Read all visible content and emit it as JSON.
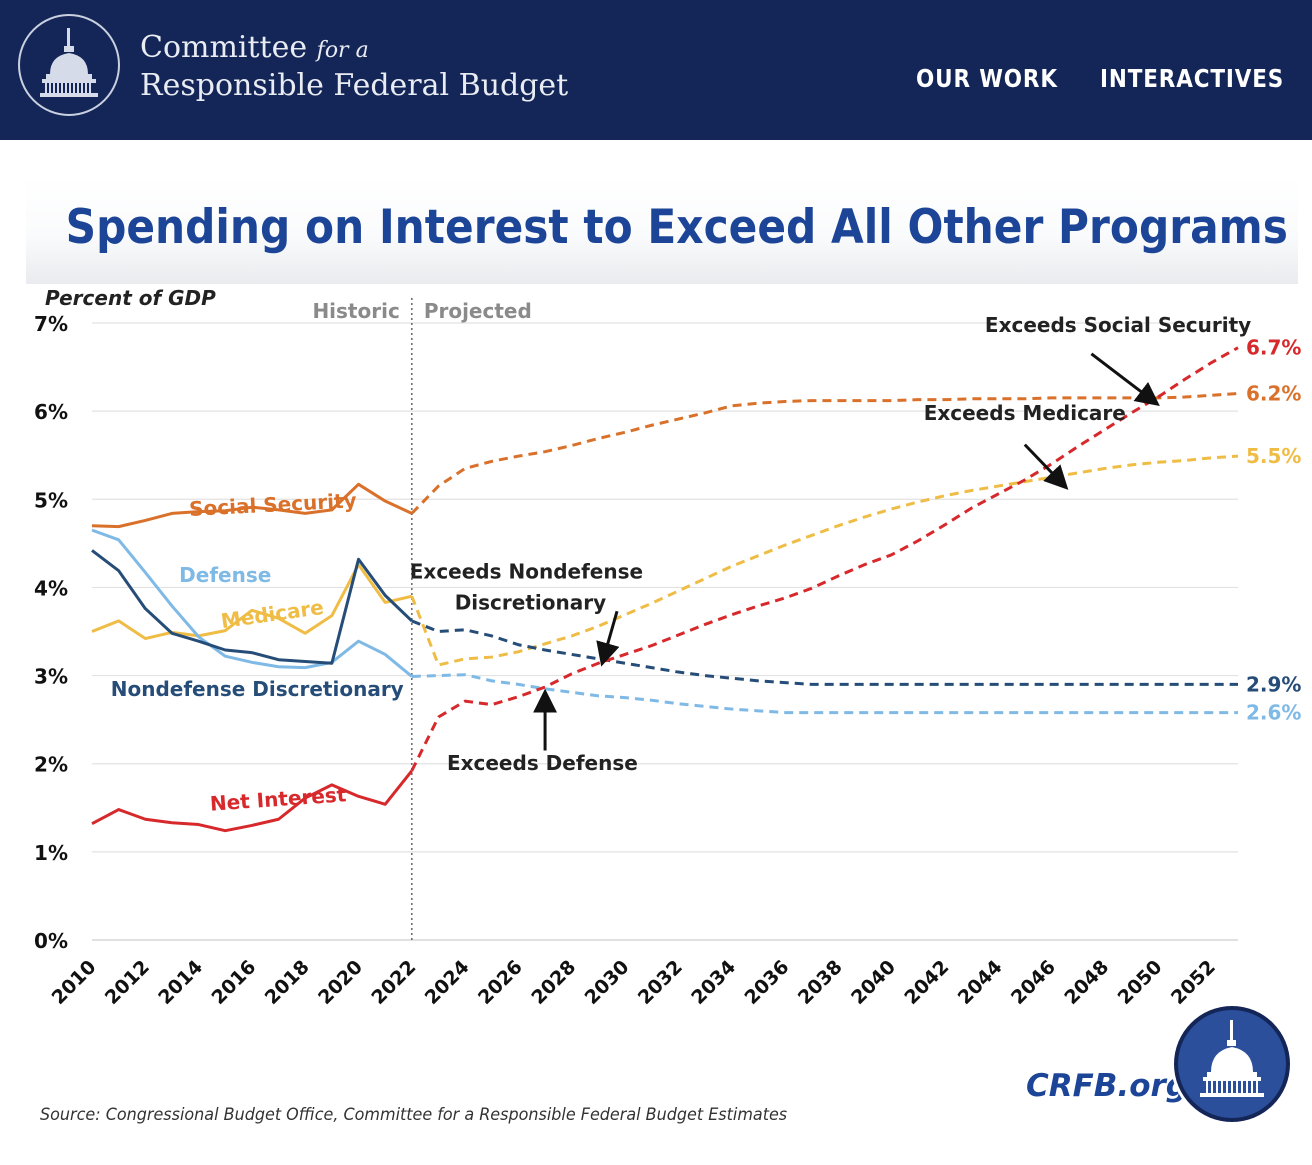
{
  "header": {
    "org_name_line1": "Committee",
    "org_name_for_a": "for a",
    "org_name_line2": "Responsible Federal Budget",
    "nav": [
      {
        "label": "OUR WORK"
      },
      {
        "label": "INTERACTIVES"
      }
    ],
    "logo_icon": "capitol-dome-icon"
  },
  "footer": {
    "source": "Source: Congressional Budget Office, Committee for a Responsible Federal Budget Estimates",
    "url": "CRFB.org",
    "seal_icon": "capitol-dome-seal-icon"
  },
  "colors": {
    "header_bg": "#142657",
    "title": "#1d4597",
    "social_security": "#d9712b",
    "medicare": "#efbd45",
    "defense": "#7fb9e6",
    "nondefense_discretionary": "#264d78",
    "net_interest": "#d7282b"
  },
  "chart_data": {
    "type": "line",
    "title": "Spending on Interest to Exceed All Other Programs",
    "ylabel": "Percent of GDP",
    "xlim": [
      2010,
      2053
    ],
    "ylim": [
      0,
      7
    ],
    "yticks": [
      "0%",
      "1%",
      "2%",
      "3%",
      "4%",
      "5%",
      "6%",
      "7%"
    ],
    "xticks": [
      "2010",
      "2012",
      "2014",
      "2016",
      "2018",
      "2020",
      "2022",
      "2024",
      "2026",
      "2028",
      "2030",
      "2032",
      "2034",
      "2036",
      "2038",
      "2040",
      "2042",
      "2044",
      "2046",
      "2048",
      "2050",
      "2052"
    ],
    "grid": "horizontal",
    "divider": {
      "x": 2022,
      "left_label": "Historic",
      "right_label": "Projected"
    },
    "x": [
      2010,
      2011,
      2012,
      2013,
      2014,
      2015,
      2016,
      2017,
      2018,
      2019,
      2020,
      2021,
      2022,
      2023,
      2024,
      2025,
      2026,
      2027,
      2028,
      2029,
      2030,
      2031,
      2032,
      2033,
      2034,
      2035,
      2036,
      2037,
      2038,
      2039,
      2040,
      2041,
      2042,
      2043,
      2044,
      2045,
      2046,
      2047,
      2048,
      2049,
      2050,
      2051,
      2052,
      2053
    ],
    "historic_end_index": 12,
    "series": [
      {
        "name": "Social Security",
        "key": "social_security",
        "end_label": "6.2%",
        "values": [
          4.7,
          4.69,
          4.76,
          4.84,
          4.86,
          4.87,
          4.91,
          4.88,
          4.84,
          4.88,
          5.17,
          4.98,
          4.84,
          5.15,
          5.35,
          5.43,
          5.49,
          5.54,
          5.61,
          5.69,
          5.76,
          5.84,
          5.91,
          5.98,
          6.06,
          6.09,
          6.11,
          6.12,
          6.12,
          6.12,
          6.12,
          6.13,
          6.13,
          6.14,
          6.14,
          6.14,
          6.15,
          6.15,
          6.15,
          6.15,
          6.15,
          6.16,
          6.18,
          6.2
        ]
      },
      {
        "name": "Medicare",
        "key": "medicare",
        "end_label": "5.5%",
        "values": [
          3.5,
          3.62,
          3.42,
          3.49,
          3.45,
          3.51,
          3.74,
          3.65,
          3.48,
          3.68,
          4.26,
          3.83,
          3.9,
          3.12,
          3.19,
          3.21,
          3.27,
          3.36,
          3.45,
          3.56,
          3.69,
          3.82,
          3.96,
          4.1,
          4.24,
          4.36,
          4.48,
          4.59,
          4.7,
          4.8,
          4.89,
          4.97,
          5.04,
          5.1,
          5.15,
          5.2,
          5.25,
          5.3,
          5.35,
          5.39,
          5.42,
          5.44,
          5.47,
          5.49
        ]
      },
      {
        "name": "Defense",
        "key": "defense",
        "end_label": "2.6%",
        "values": [
          4.65,
          4.54,
          4.17,
          3.79,
          3.44,
          3.22,
          3.15,
          3.1,
          3.09,
          3.15,
          3.39,
          3.24,
          2.99,
          3.0,
          3.01,
          2.94,
          2.9,
          2.85,
          2.81,
          2.77,
          2.75,
          2.72,
          2.68,
          2.65,
          2.62,
          2.6,
          2.58,
          2.58,
          2.58,
          2.58,
          2.58,
          2.58,
          2.58,
          2.58,
          2.58,
          2.58,
          2.58,
          2.58,
          2.58,
          2.58,
          2.58,
          2.58,
          2.58,
          2.58
        ]
      },
      {
        "name": "Nondefense Discretionary",
        "key": "nondefense_discretionary",
        "end_label": "2.9%",
        "values": [
          4.42,
          4.19,
          3.76,
          3.48,
          3.39,
          3.29,
          3.26,
          3.18,
          3.16,
          3.14,
          4.32,
          3.91,
          3.62,
          3.5,
          3.52,
          3.45,
          3.35,
          3.29,
          3.24,
          3.19,
          3.14,
          3.09,
          3.04,
          3.0,
          2.97,
          2.94,
          2.92,
          2.9,
          2.9,
          2.9,
          2.9,
          2.9,
          2.9,
          2.9,
          2.9,
          2.9,
          2.9,
          2.9,
          2.9,
          2.9,
          2.9,
          2.9,
          2.9,
          2.9
        ]
      },
      {
        "name": "Net Interest",
        "key": "net_interest",
        "end_label": "6.7%",
        "values": [
          1.32,
          1.48,
          1.37,
          1.33,
          1.31,
          1.24,
          1.3,
          1.37,
          1.61,
          1.76,
          1.63,
          1.54,
          1.92,
          2.53,
          2.71,
          2.67,
          2.76,
          2.87,
          3.02,
          3.14,
          3.24,
          3.34,
          3.46,
          3.58,
          3.69,
          3.79,
          3.88,
          3.99,
          4.13,
          4.26,
          4.37,
          4.53,
          4.71,
          4.9,
          5.06,
          5.22,
          5.4,
          5.6,
          5.79,
          5.98,
          6.16,
          6.36,
          6.55,
          6.72
        ]
      }
    ],
    "series_labels": [
      {
        "text": "Social Security",
        "series": "social_security",
        "x": 2016.8,
        "y": 4.86,
        "angle": -3
      },
      {
        "text": "Defense",
        "series": "defense",
        "x": 2015.0,
        "y": 4.06,
        "angle": 0
      },
      {
        "text": "Medicare",
        "series": "medicare",
        "x": 2016.8,
        "y": 3.62,
        "angle": -8
      },
      {
        "text": "Nondefense Discretionary",
        "series": "nondefense_discretionary",
        "x": 2016.2,
        "y": 2.77,
        "angle": 0
      },
      {
        "text": "Net Interest",
        "series": "net_interest",
        "x": 2017.0,
        "y": 1.52,
        "angle": -4
      }
    ],
    "annotations": [
      {
        "lines": [
          "Exceeds Social Security"
        ],
        "x": 2048.5,
        "y": 6.9,
        "arrow_from": [
          2047.5,
          6.65
        ],
        "arrow_to": [
          2049.8,
          6.12
        ]
      },
      {
        "lines": [
          "Exceeds Medicare"
        ],
        "x": 2045.0,
        "y": 5.9,
        "arrow_from": [
          2045.0,
          5.62
        ],
        "arrow_to": [
          2046.4,
          5.18
        ]
      },
      {
        "lines": [
          "Exceeds Nondefense",
          "Discretionary"
        ],
        "x": 2026.3,
        "y": 4.1,
        "arrow_from": [
          2029.7,
          3.73
        ],
        "arrow_to": [
          2029.2,
          3.2
        ]
      },
      {
        "lines": [
          "Exceeds Defense"
        ],
        "x": 2026.9,
        "y": 1.93,
        "arrow_from": [
          2027.0,
          2.15
        ],
        "arrow_to": [
          2027.0,
          2.75
        ]
      }
    ]
  }
}
